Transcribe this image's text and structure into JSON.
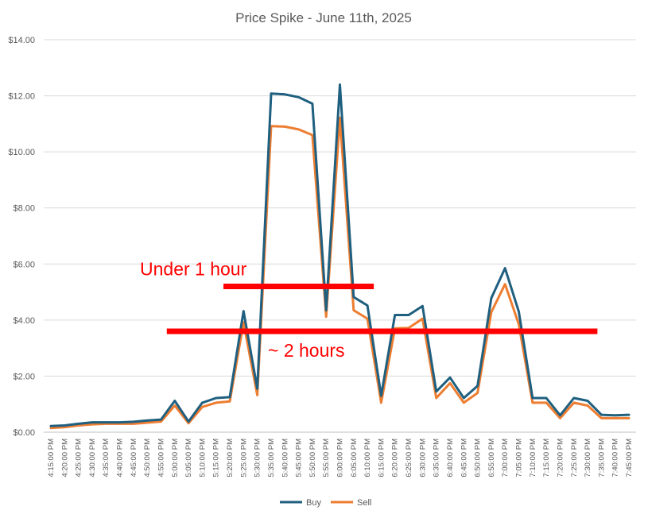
{
  "chart_data": {
    "type": "line",
    "title": "Price Spike - June 11th, 2025",
    "xlabel": "",
    "ylabel": "",
    "ylim": [
      0,
      14
    ],
    "y_ticks": [
      "$0.00",
      "$2.00",
      "$4.00",
      "$6.00",
      "$8.00",
      "$10.00",
      "$12.00",
      "$14.00"
    ],
    "grid": "horizontal",
    "legend_position": "bottom",
    "x": [
      "4:15:00 PM",
      "4:20:00 PM",
      "4:25:00 PM",
      "4:30:00 PM",
      "4:35:00 PM",
      "4:40:00 PM",
      "4:45:00 PM",
      "4:50:00 PM",
      "4:55:00 PM",
      "5:00:00 PM",
      "5:05:00 PM",
      "5:10:00 PM",
      "5:15:00 PM",
      "5:20:00 PM",
      "5:25:00 PM",
      "5:30:00 PM",
      "5:35:00 PM",
      "5:40:00 PM",
      "5:45:00 PM",
      "5:50:00 PM",
      "5:55:00 PM",
      "6:00:00 PM",
      "6:05:00 PM",
      "6:10:00 PM",
      "6:15:00 PM",
      "6:20:00 PM",
      "6:25:00 PM",
      "6:30:00 PM",
      "6:35:00 PM",
      "6:40:00 PM",
      "6:45:00 PM",
      "6:50:00 PM",
      "6:55:00 PM",
      "7:00:00 PM",
      "7:05:00 PM",
      "7:10:00 PM",
      "7:15:00 PM",
      "7:20:00 PM",
      "7:25:00 PM",
      "7:30:00 PM",
      "7:35:00 PM",
      "7:40:00 PM",
      "7:45:00 PM"
    ],
    "series": [
      {
        "name": "Buy",
        "color": "#1f5f7f",
        "values": [
          0.22,
          0.24,
          0.3,
          0.35,
          0.35,
          0.35,
          0.37,
          0.42,
          0.45,
          1.12,
          0.38,
          1.05,
          1.22,
          1.25,
          4.32,
          1.55,
          12.08,
          12.05,
          11.95,
          11.72,
          4.35,
          12.4,
          4.82,
          4.52,
          1.3,
          4.18,
          4.18,
          4.5,
          1.45,
          1.95,
          1.22,
          1.65,
          4.78,
          5.85,
          4.3,
          1.22,
          1.22,
          0.6,
          1.22,
          1.12,
          0.62,
          0.6,
          0.62
        ]
      },
      {
        "name": "Sell",
        "color": "#ed7d31",
        "values": [
          0.15,
          0.18,
          0.24,
          0.28,
          0.3,
          0.3,
          0.3,
          0.34,
          0.38,
          0.95,
          0.32,
          0.9,
          1.05,
          1.1,
          3.92,
          1.32,
          10.92,
          10.9,
          10.8,
          10.6,
          4.12,
          11.22,
          4.35,
          4.05,
          1.05,
          3.7,
          3.72,
          4.05,
          1.22,
          1.75,
          1.05,
          1.4,
          4.28,
          5.28,
          3.85,
          1.05,
          1.05,
          0.5,
          1.05,
          0.95,
          0.5,
          0.5,
          0.5
        ]
      }
    ],
    "annotations": [
      {
        "text": "Under 1 hour",
        "y": 5.2,
        "x_start": "5:20:00 PM",
        "x_end": "6:10:00 PM"
      },
      {
        "text": "~ 2 hours",
        "y": 3.6,
        "x_start": "5:00:00 PM",
        "x_end": "7:35:00 PM"
      }
    ],
    "annotation_color": "#ff0000"
  }
}
